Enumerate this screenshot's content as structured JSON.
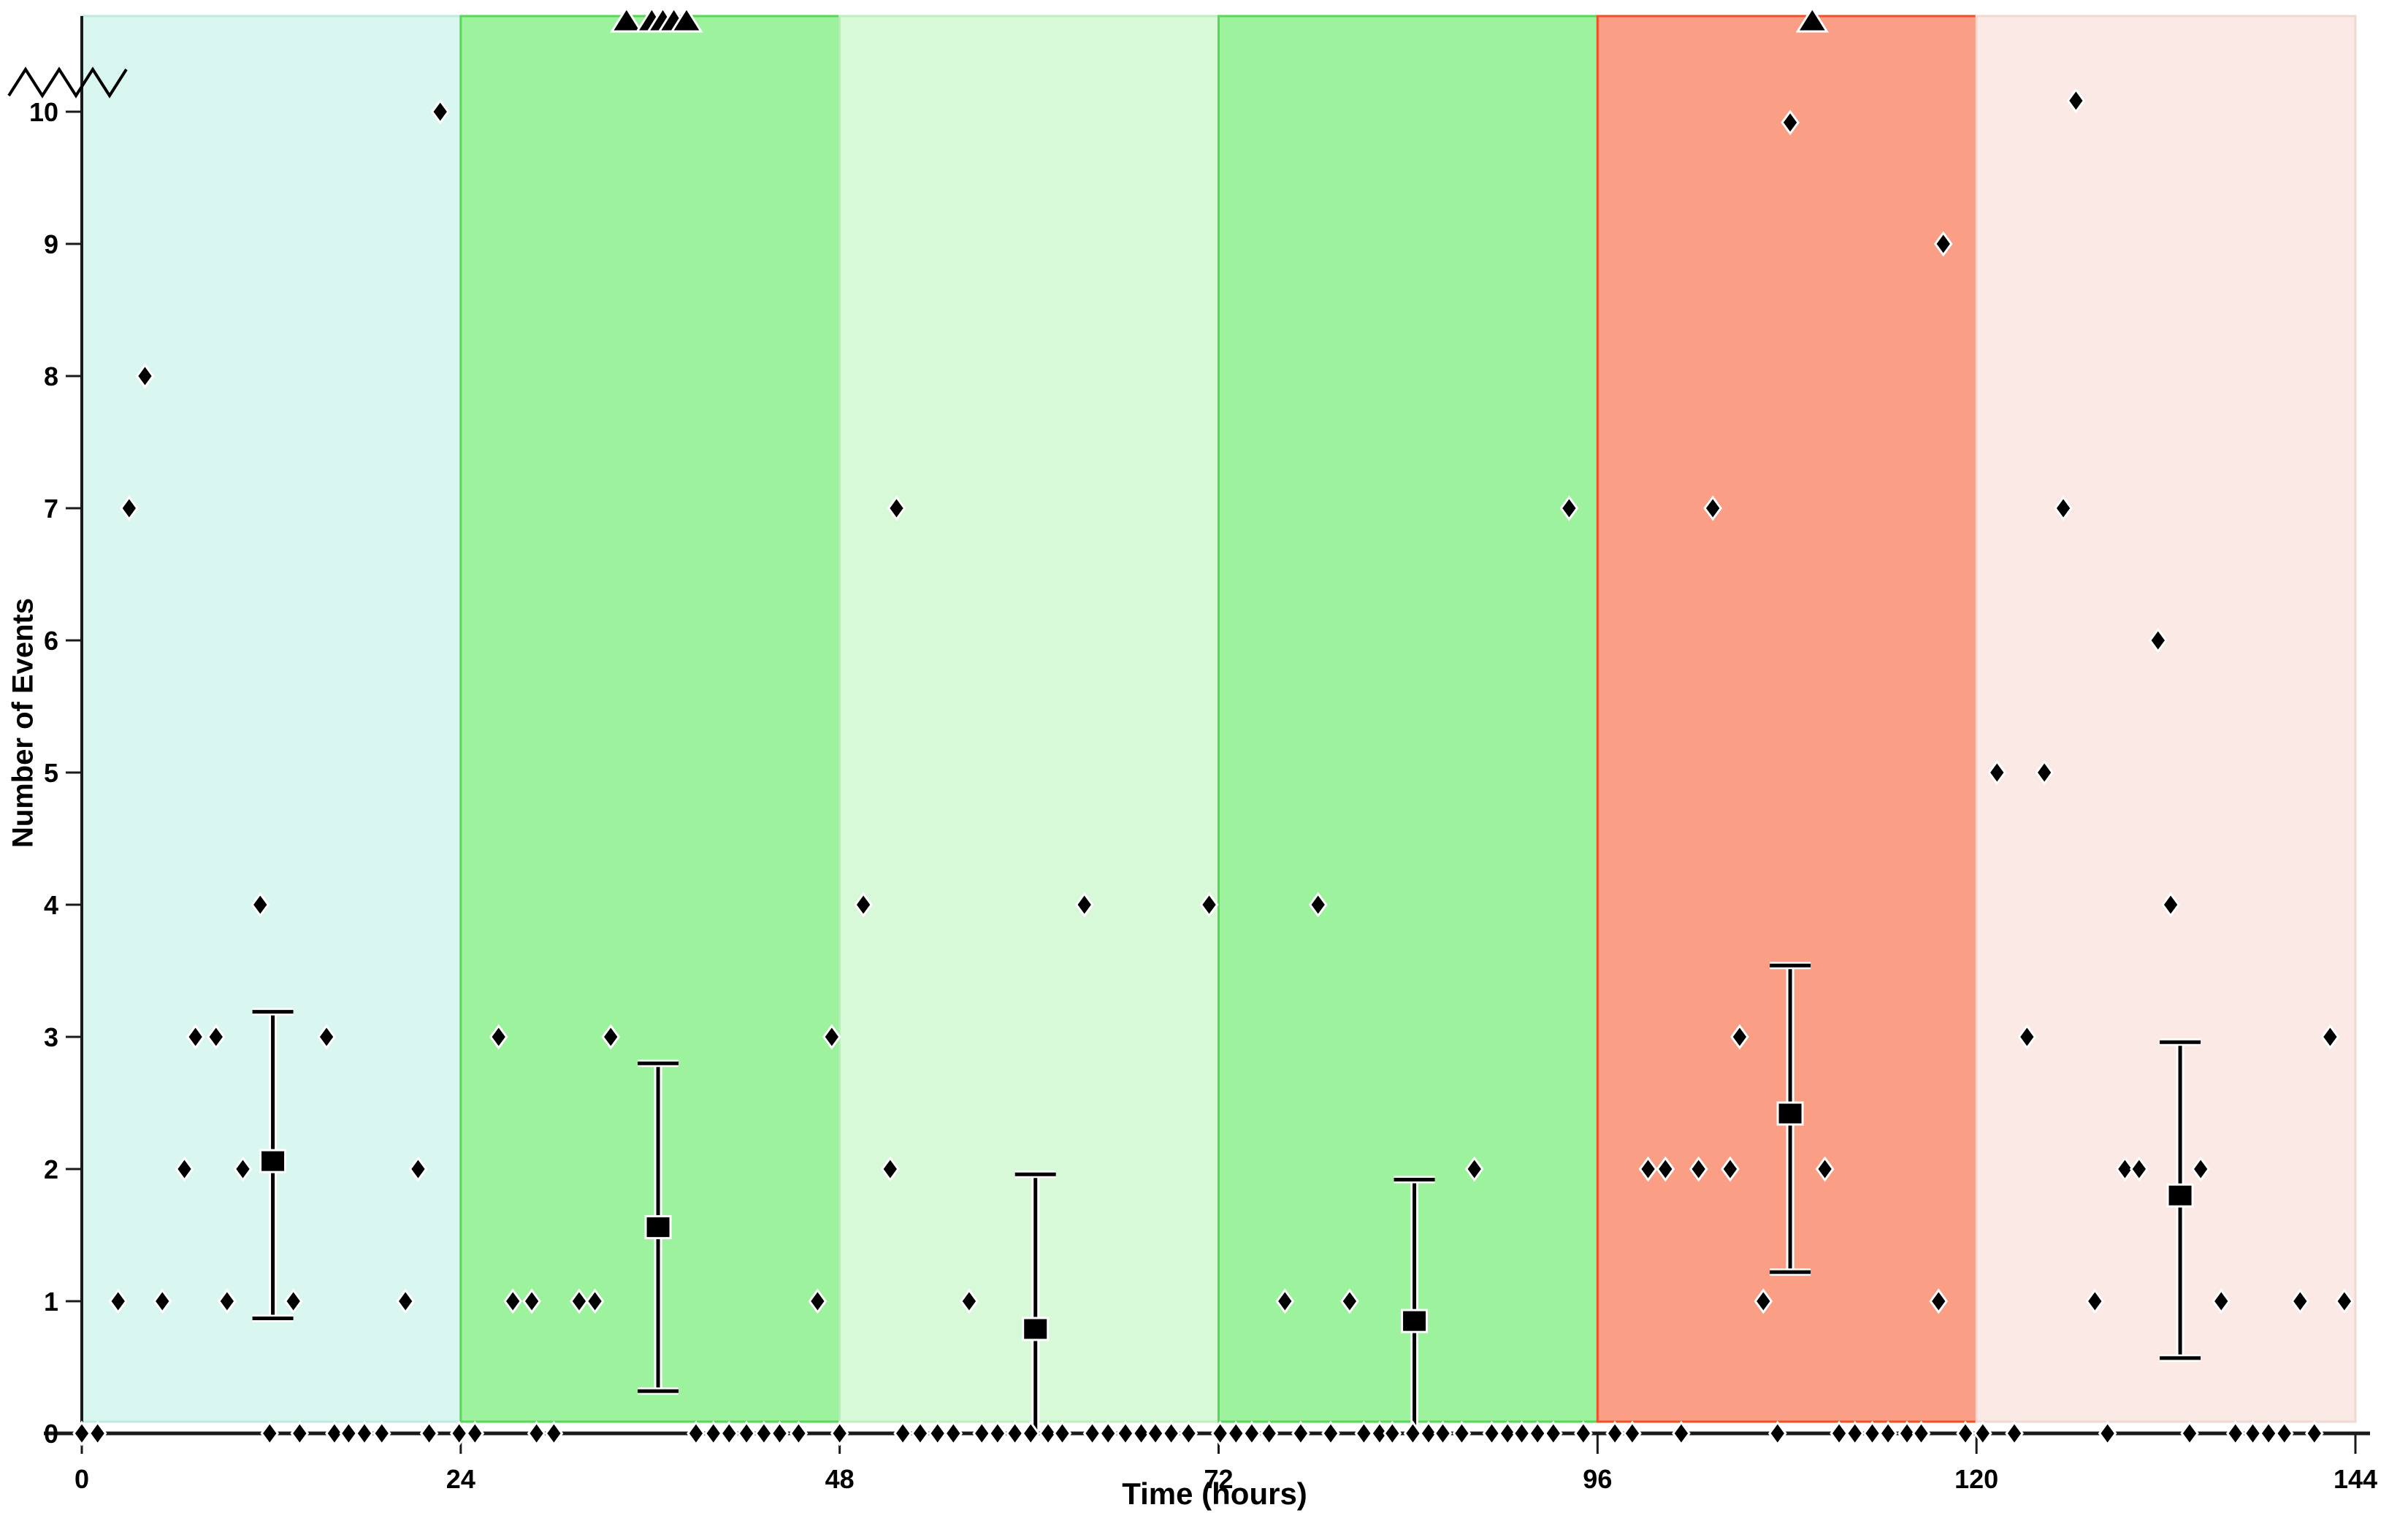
{
  "figure": {
    "xlabel": "Time (hours)",
    "ylabel": "Number of Events"
  },
  "chart_data": {
    "type": "scatter",
    "title": "",
    "xlabel": "Time (hours)",
    "ylabel": "Number of Events",
    "xlim": [
      0,
      144
    ],
    "ylim": [
      0,
      10.8
    ],
    "x_ticks": [
      0,
      24,
      48,
      72,
      96,
      120,
      144
    ],
    "y_ticks": [
      0,
      1,
      2,
      3,
      4,
      5,
      6,
      7,
      8,
      9,
      10
    ],
    "grid": false,
    "legend": "none",
    "y_axis_break_above": 10,
    "colors": {
      "marker": "#000000",
      "axis": "#1a1a1a"
    },
    "bands": [
      {
        "start_hour": 0,
        "end_hour": 24,
        "fill": "#d9f7f0",
        "border": "#bfe9e0"
      },
      {
        "start_hour": 24,
        "end_hour": 48,
        "fill": "#9df29d",
        "border": "#55d855"
      },
      {
        "start_hour": 48,
        "end_hour": 72,
        "fill": "#d8f9d8",
        "border": "#bdeebd"
      },
      {
        "start_hour": 72,
        "end_hour": 96,
        "fill": "#9df29d",
        "border": "#55d855"
      },
      {
        "start_hour": 96,
        "end_hour": 120,
        "fill": "#fb9e86",
        "border": "#f34e26"
      },
      {
        "start_hour": 120,
        "end_hour": 144,
        "fill": "#fbe9e5",
        "border": "#f2d8d2"
      }
    ],
    "diamond_points_hour_events": [
      [
        0,
        0
      ],
      [
        1,
        0
      ],
      [
        11.9,
        0
      ],
      [
        13.8,
        0
      ],
      [
        16,
        0
      ],
      [
        16.9,
        0
      ],
      [
        17.9,
        0
      ],
      [
        19,
        0
      ],
      [
        22,
        0
      ],
      [
        2.3,
        1
      ],
      [
        5.1,
        1
      ],
      [
        9.2,
        1
      ],
      [
        13.4,
        1
      ],
      [
        20.5,
        1
      ],
      [
        6.5,
        2
      ],
      [
        10.2,
        2
      ],
      [
        21.3,
        2
      ],
      [
        7.2,
        3
      ],
      [
        8.5,
        3
      ],
      [
        15.5,
        3
      ],
      [
        11.3,
        4
      ],
      [
        3,
        7
      ],
      [
        4,
        8
      ],
      [
        22.7,
        10
      ],
      [
        23.9,
        0
      ],
      [
        24.9,
        0
      ],
      [
        28.8,
        0
      ],
      [
        29.9,
        0
      ],
      [
        38.9,
        0
      ],
      [
        40,
        0
      ],
      [
        41,
        0
      ],
      [
        42.1,
        0
      ],
      [
        43.2,
        0
      ],
      [
        44.2,
        0
      ],
      [
        45.4,
        0
      ],
      [
        27.3,
        1
      ],
      [
        28.5,
        1
      ],
      [
        31.5,
        1
      ],
      [
        32.5,
        1
      ],
      [
        46.6,
        1
      ],
      [
        26.4,
        3
      ],
      [
        33.5,
        3
      ],
      [
        47.5,
        3
      ],
      [
        48,
        0
      ],
      [
        52,
        0
      ],
      [
        53.1,
        0
      ],
      [
        54.2,
        0
      ],
      [
        55.2,
        0
      ],
      [
        57,
        0
      ],
      [
        58,
        0
      ],
      [
        59.1,
        0
      ],
      [
        60.1,
        0
      ],
      [
        61.2,
        0
      ],
      [
        62.1,
        0
      ],
      [
        64,
        0
      ],
      [
        65,
        0
      ],
      [
        66.1,
        0
      ],
      [
        67.1,
        0
      ],
      [
        68,
        0
      ],
      [
        69,
        0
      ],
      [
        70.1,
        0
      ],
      [
        56.2,
        1
      ],
      [
        51.2,
        2
      ],
      [
        49.5,
        4
      ],
      [
        63.5,
        4
      ],
      [
        71.4,
        4
      ],
      [
        51.6,
        7
      ],
      [
        72.1,
        0
      ],
      [
        73.1,
        0
      ],
      [
        74.1,
        0
      ],
      [
        75.2,
        0
      ],
      [
        77.2,
        0
      ],
      [
        79.1,
        0
      ],
      [
        81.2,
        0
      ],
      [
        82.2,
        0
      ],
      [
        83,
        0
      ],
      [
        84.3,
        0
      ],
      [
        85.3,
        0
      ],
      [
        86.2,
        0
      ],
      [
        87.4,
        0
      ],
      [
        89.3,
        0
      ],
      [
        90.3,
        0
      ],
      [
        91.2,
        0
      ],
      [
        92.2,
        0
      ],
      [
        93.2,
        0
      ],
      [
        95.1,
        0
      ],
      [
        76.2,
        1
      ],
      [
        80.3,
        1
      ],
      [
        88.2,
        2
      ],
      [
        78.3,
        4
      ],
      [
        94.2,
        7
      ],
      [
        97.1,
        0
      ],
      [
        98.2,
        0
      ],
      [
        101.3,
        0
      ],
      [
        107.4,
        0
      ],
      [
        111.3,
        0
      ],
      [
        112.3,
        0
      ],
      [
        113.4,
        0
      ],
      [
        114.4,
        0
      ],
      [
        115.6,
        0
      ],
      [
        116.5,
        0
      ],
      [
        119.3,
        0
      ],
      [
        106.5,
        1
      ],
      [
        117.6,
        1
      ],
      [
        99.2,
        2
      ],
      [
        100.3,
        2
      ],
      [
        102.4,
        2
      ],
      [
        104.4,
        2
      ],
      [
        110.4,
        2
      ],
      [
        105,
        3
      ],
      [
        103.3,
        7
      ],
      [
        117.9,
        9
      ],
      [
        120.4,
        0
      ],
      [
        122.4,
        0
      ],
      [
        128.3,
        0
      ],
      [
        133.5,
        0
      ],
      [
        136.4,
        0
      ],
      [
        137.5,
        0
      ],
      [
        138.5,
        0
      ],
      [
        139.5,
        0
      ],
      [
        141.4,
        0
      ],
      [
        127.5,
        1
      ],
      [
        135.5,
        1
      ],
      [
        140.5,
        1
      ],
      [
        143.3,
        1
      ],
      [
        129.4,
        2
      ],
      [
        130.3,
        2
      ],
      [
        134.2,
        2
      ],
      [
        123.2,
        3
      ],
      [
        142.4,
        3
      ],
      [
        132.3,
        4
      ],
      [
        121.3,
        5
      ],
      [
        124.3,
        5
      ],
      [
        131.5,
        6
      ],
      [
        125.5,
        7
      ]
    ],
    "offscale_triangles_hours": [
      34.5,
      36.1,
      36.8,
      37.5,
      38.3,
      109.6
    ],
    "offscale_triangles_note": "values > 10, plotted clipped at top edge above the y-axis break",
    "above_break_diamonds": [
      {
        "hour": 108.2,
        "approx_value": 10.2
      },
      {
        "hour": 126.3,
        "approx_value": 10.5
      }
    ],
    "error_bars_mean_upper_lower": [
      {
        "hour": 12.1,
        "mean": 2.06,
        "upper": 3.19,
        "lower": 0.87
      },
      {
        "hour": 36.5,
        "mean": 1.56,
        "upper": 2.8,
        "lower": 0.32
      },
      {
        "hour": 60.4,
        "mean": 0.79,
        "upper": 1.96,
        "lower": 0.03
      },
      {
        "hour": 84.4,
        "mean": 0.85,
        "upper": 1.92,
        "lower": 0.02
      },
      {
        "hour": 108.2,
        "mean": 2.42,
        "upper": 3.54,
        "lower": 1.22
      },
      {
        "hour": 132.9,
        "mean": 1.8,
        "upper": 2.96,
        "lower": 0.57
      }
    ]
  }
}
